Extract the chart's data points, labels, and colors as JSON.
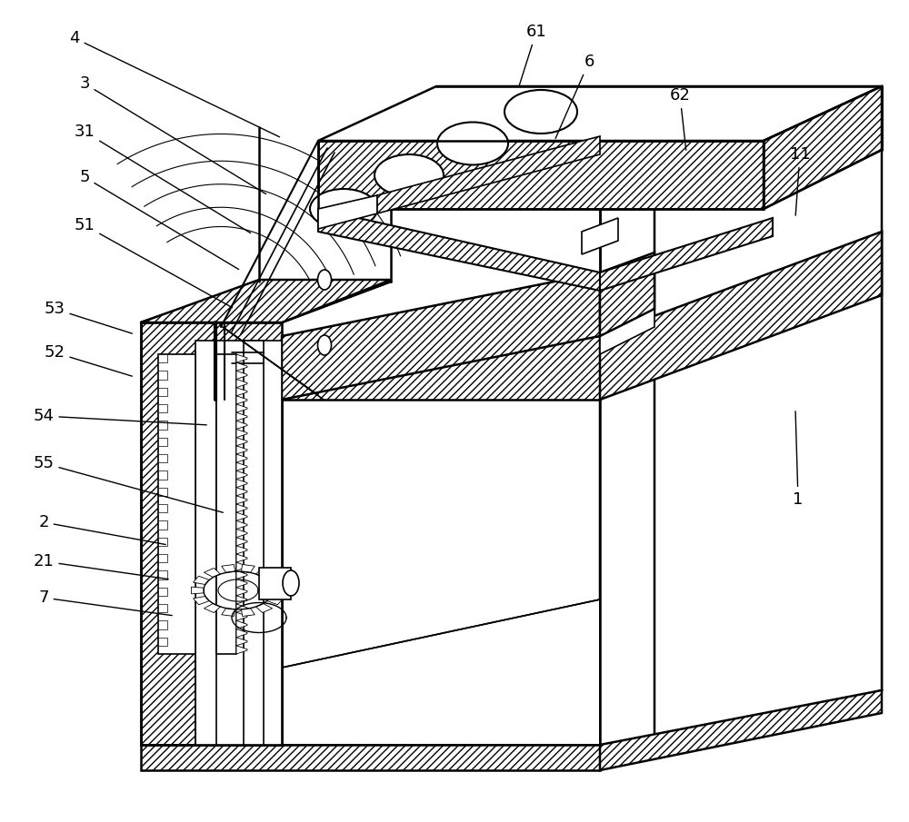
{
  "bg": "#ffffff",
  "lc": "#000000",
  "fig_w": 10.0,
  "fig_h": 9.05,
  "dpi": 100,
  "annotations": [
    [
      "4",
      82,
      42,
      310,
      152
    ],
    [
      "3",
      93,
      92,
      295,
      215
    ],
    [
      "31",
      93,
      145,
      278,
      258
    ],
    [
      "5",
      93,
      195,
      265,
      298
    ],
    [
      "51",
      93,
      248,
      258,
      340
    ],
    [
      "53",
      60,
      340,
      148,
      368
    ],
    [
      "52",
      60,
      388,
      148,
      415
    ],
    [
      "54",
      48,
      458,
      230,
      468
    ],
    [
      "55",
      48,
      510,
      248,
      565
    ],
    [
      "2",
      48,
      575,
      185,
      600
    ],
    [
      "21",
      48,
      618,
      188,
      638
    ],
    [
      "7",
      48,
      658,
      192,
      678
    ],
    [
      "61",
      590,
      35,
      570,
      98
    ],
    [
      "6",
      648,
      68,
      610,
      155
    ],
    [
      "62",
      748,
      105,
      755,
      168
    ],
    [
      "11",
      880,
      170,
      875,
      240
    ],
    [
      "1",
      878,
      550,
      875,
      450
    ]
  ]
}
